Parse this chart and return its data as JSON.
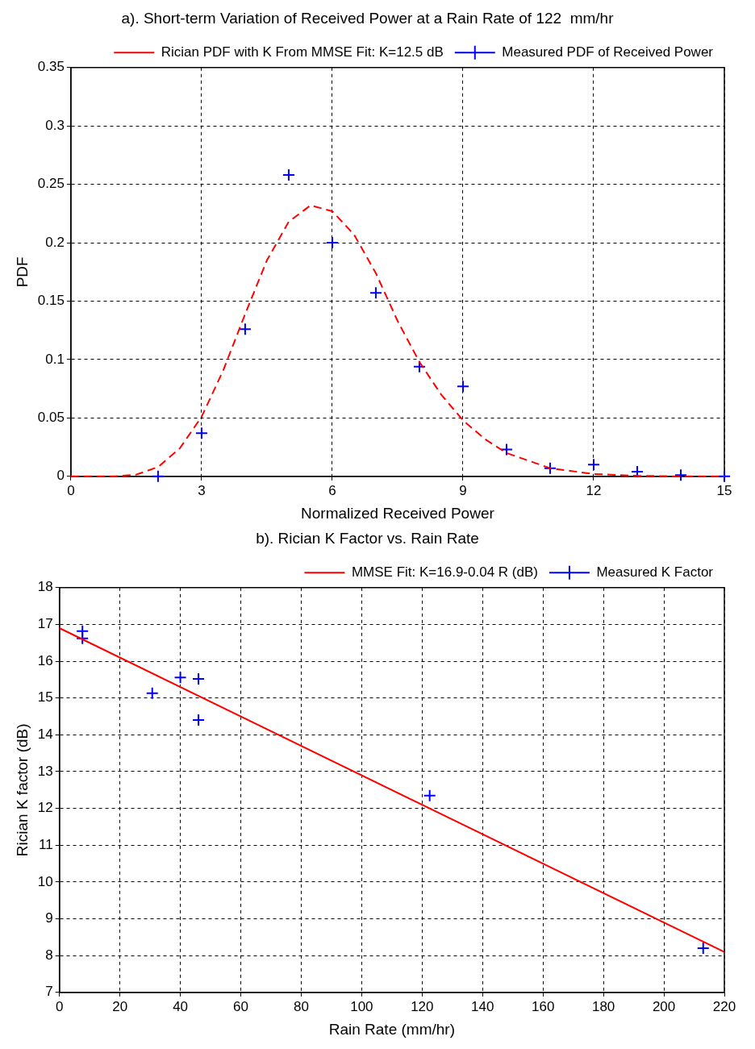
{
  "chart_data": [
    {
      "type": "scatter",
      "title": "a). Short-term Variation of Received Power at a Rain Rate of 122  mm/hr",
      "xlabel": "Normalized Received Power",
      "ylabel": "PDF",
      "xlim": [
        0,
        15
      ],
      "xticks": [
        0,
        3,
        6,
        9,
        12,
        15
      ],
      "ylim": [
        0,
        0.35
      ],
      "yticks": [
        0,
        0.05,
        0.1,
        0.15,
        0.2,
        0.25,
        0.3,
        0.35
      ],
      "grid": true,
      "legend": "top right",
      "series": [
        {
          "name": "Measured PDF of Received Power",
          "type": "scatter",
          "color": "#0000ff",
          "marker": "cross",
          "x": [
            2,
            3,
            4,
            5,
            6,
            7,
            8,
            9,
            10,
            11,
            12,
            13,
            14,
            15
          ],
          "values": [
            0,
            0.037,
            0.126,
            0.258,
            0.2,
            0.157,
            0.094,
            0.077,
            0.023,
            0.007,
            0.01,
            0.004,
            0.001,
            0
          ]
        },
        {
          "name": "Rician PDF with K From MMSE Fit: K=12.5 dB",
          "type": "line",
          "color": "#ff0000",
          "line_style": "dashed",
          "marker": "none",
          "x": [
            0,
            1,
            1.5,
            2,
            2.5,
            3,
            3.5,
            4,
            4.5,
            5,
            5.5,
            6,
            6.5,
            7,
            7.5,
            8,
            8.5,
            9,
            9.5,
            10,
            11,
            12,
            13,
            14,
            15
          ],
          "values": [
            0,
            0,
            0.0015,
            0.008,
            0.024,
            0.051,
            0.091,
            0.139,
            0.185,
            0.218,
            0.232,
            0.227,
            0.207,
            0.174,
            0.133,
            0.098,
            0.07,
            0.048,
            0.032,
            0.02,
            0.007,
            0.002,
            0.0005,
            0,
            0
          ]
        }
      ]
    },
    {
      "type": "scatter",
      "title": "b). Rician K Factor vs. Rain Rate",
      "xlabel": "Rain Rate (mm/hr)",
      "ylabel": "Rician K factor (dB)",
      "xlim": [
        0,
        220
      ],
      "xticks": [
        0,
        20,
        40,
        60,
        80,
        100,
        120,
        140,
        160,
        180,
        200,
        220
      ],
      "ylim": [
        7,
        18
      ],
      "yticks": [
        7,
        8,
        9,
        10,
        11,
        12,
        13,
        14,
        15,
        16,
        17,
        18
      ],
      "grid": true,
      "legend": "top right",
      "series": [
        {
          "name": "Measured K Factor",
          "type": "scatter",
          "color": "#0000ff",
          "marker": "cross",
          "x": [
            7.6,
            7.6,
            30.7,
            40,
            46,
            46,
            122.5,
            213
          ],
          "values": [
            16.82,
            16.62,
            15.13,
            15.56,
            15.52,
            14.4,
            12.35,
            8.2
          ]
        },
        {
          "name": "MMSE Fit: K=16.9-0.04 R (dB)",
          "type": "line",
          "color": "#ff0000",
          "line_style": "solid",
          "marker": "none",
          "x": [
            0,
            220
          ],
          "values": [
            16.9,
            8.1
          ]
        }
      ]
    }
  ]
}
